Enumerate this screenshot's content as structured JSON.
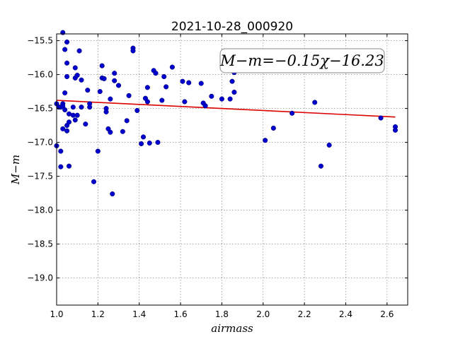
{
  "chart_data": {
    "type": "scatter",
    "title": "2021-10-28_000920",
    "xlabel": "airmass",
    "ylabel": "M−m",
    "xlim": [
      1.0,
      2.7
    ],
    "ylim": [
      -19.4,
      -15.4
    ],
    "y_inverted": true,
    "grid": true,
    "x_ticks": [
      1.0,
      1.2,
      1.4,
      1.6,
      1.8,
      2.0,
      2.2,
      2.4,
      2.6
    ],
    "x_tick_labels": [
      "1.0",
      "1.2",
      "1.4",
      "1.6",
      "1.8",
      "2.0",
      "2.2",
      "2.4",
      "2.6"
    ],
    "y_ticks": [
      -15.5,
      -16.0,
      -16.5,
      -17.0,
      -17.5,
      -18.0,
      -18.5,
      -19.0
    ],
    "y_tick_labels": [
      "−15.5",
      "−16.0",
      "−16.5",
      "−17.0",
      "−17.5",
      "−18.0",
      "−18.5",
      "−19.0"
    ],
    "annotation": "M−m=−0.15χ−16.23",
    "annotation_placement": "top-right",
    "point_color": "#0000cc",
    "fit_color": "#dd0000",
    "fit": {
      "slope": -0.15,
      "intercept": -16.23,
      "x_range": [
        1.0,
        2.64
      ]
    },
    "points": [
      [
        1.0,
        -17.05
      ],
      [
        1.0,
        -16.43
      ],
      [
        1.01,
        -16.48
      ],
      [
        1.02,
        -16.48
      ],
      [
        1.02,
        -17.13
      ],
      [
        1.02,
        -17.36
      ],
      [
        1.03,
        -15.38
      ],
      [
        1.03,
        -16.43
      ],
      [
        1.03,
        -16.47
      ],
      [
        1.03,
        -16.8
      ],
      [
        1.04,
        -16.52
      ],
      [
        1.04,
        -16.27
      ],
      [
        1.04,
        -15.63
      ],
      [
        1.05,
        -15.83
      ],
      [
        1.05,
        -16.03
      ],
      [
        1.05,
        -16.83
      ],
      [
        1.05,
        -16.75
      ],
      [
        1.05,
        -15.52
      ],
      [
        1.06,
        -16.7
      ],
      [
        1.06,
        -16.58
      ],
      [
        1.06,
        -17.35
      ],
      [
        1.08,
        -16.48
      ],
      [
        1.08,
        -16.6
      ],
      [
        1.09,
        -16.67
      ],
      [
        1.09,
        -16.05
      ],
      [
        1.09,
        -15.9
      ],
      [
        1.1,
        -16.01
      ],
      [
        1.1,
        -16.6
      ],
      [
        1.11,
        -15.65
      ],
      [
        1.12,
        -16.08
      ],
      [
        1.12,
        -16.48
      ],
      [
        1.14,
        -16.73
      ],
      [
        1.15,
        -16.23
      ],
      [
        1.16,
        -16.43
      ],
      [
        1.16,
        -16.48
      ],
      [
        1.18,
        -17.58
      ],
      [
        1.2,
        -17.13
      ],
      [
        1.21,
        -16.25
      ],
      [
        1.22,
        -16.05
      ],
      [
        1.22,
        -15.87
      ],
      [
        1.23,
        -16.06
      ],
      [
        1.24,
        -16.55
      ],
      [
        1.24,
        -16.5
      ],
      [
        1.25,
        -16.8
      ],
      [
        1.26,
        -16.85
      ],
      [
        1.26,
        -16.36
      ],
      [
        1.27,
        -17.76
      ],
      [
        1.28,
        -16.09
      ],
      [
        1.28,
        -15.98
      ],
      [
        1.3,
        -16.16
      ],
      [
        1.32,
        -16.84
      ],
      [
        1.34,
        -16.68
      ],
      [
        1.35,
        -16.31
      ],
      [
        1.37,
        -15.61
      ],
      [
        1.37,
        -15.65
      ],
      [
        1.39,
        -16.53
      ],
      [
        1.41,
        -17.02
      ],
      [
        1.42,
        -16.92
      ],
      [
        1.43,
        -16.35
      ],
      [
        1.44,
        -16.4
      ],
      [
        1.44,
        -16.19
      ],
      [
        1.45,
        -17.01
      ],
      [
        1.47,
        -15.94
      ],
      [
        1.48,
        -15.98
      ],
      [
        1.49,
        -17.0
      ],
      [
        1.51,
        -16.38
      ],
      [
        1.52,
        -16.03
      ],
      [
        1.53,
        -16.18
      ],
      [
        1.56,
        -15.89
      ],
      [
        1.61,
        -16.1
      ],
      [
        1.62,
        -16.4
      ],
      [
        1.64,
        -16.12
      ],
      [
        1.7,
        -16.13
      ],
      [
        1.71,
        -16.42
      ],
      [
        1.72,
        -16.46
      ],
      [
        1.75,
        -16.32
      ],
      [
        1.8,
        -16.36
      ],
      [
        1.84,
        -16.36
      ],
      [
        1.85,
        -16.1
      ],
      [
        1.86,
        -15.97
      ],
      [
        1.86,
        -16.26
      ],
      [
        2.01,
        -16.97
      ],
      [
        2.05,
        -16.79
      ],
      [
        2.14,
        -16.57
      ],
      [
        2.25,
        -16.41
      ],
      [
        2.28,
        -17.35
      ],
      [
        2.32,
        -17.04
      ],
      [
        2.57,
        -16.64
      ],
      [
        2.64,
        -16.77
      ],
      [
        2.64,
        -16.82
      ]
    ]
  }
}
